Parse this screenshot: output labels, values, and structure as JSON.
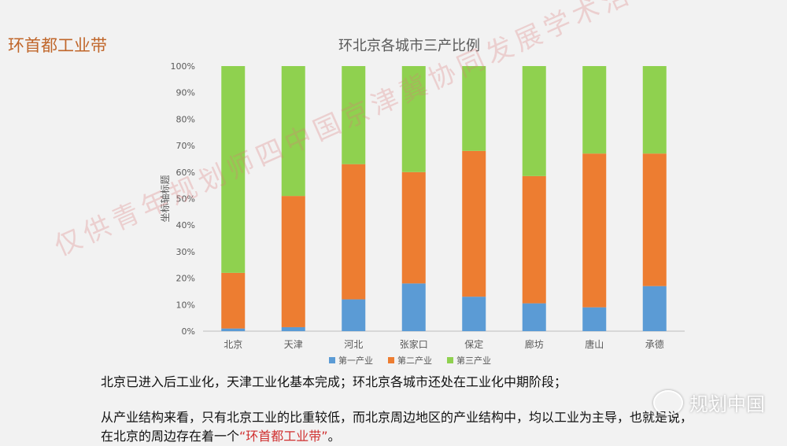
{
  "slide": {
    "title": "环首都工业带",
    "watermark": "仅供青年规划师四中国京津冀协同发展学术活动使用",
    "paragraph1": "北京已进入后工业化，天津工业化基本完成；环北京各城市还处在工业化中期阶段；",
    "paragraph2_before": "从产业结构来看，只有北京工业的比重较低，而北京周边地区的产业结构中，均以工业为主导，也就是说，在北京的周边存在着一个",
    "paragraph2_highlight": "“环首都工业带”",
    "paragraph2_after": "。",
    "brand_name": "规划中国",
    "brand_icon": "wechat-icon"
  },
  "chart_data": {
    "type": "bar",
    "stacked": true,
    "title": "环北京各城市三产比例",
    "ylabel": "坐标轴标题",
    "xlabel": "",
    "ylim": [
      0,
      100
    ],
    "y_ticks": [
      "0%",
      "10%",
      "20%",
      "30%",
      "40%",
      "50%",
      "60%",
      "70%",
      "80%",
      "90%",
      "100%"
    ],
    "categories": [
      "北京",
      "天津",
      "河北",
      "张家口",
      "保定",
      "廊坊",
      "唐山",
      "承德"
    ],
    "series": [
      {
        "name": "第一产业",
        "color": "#5b9bd5",
        "values": [
          1,
          1.5,
          12,
          18,
          13,
          10.5,
          9,
          17
        ]
      },
      {
        "name": "第二产业",
        "color": "#ed7d31",
        "values": [
          21,
          49.5,
          51,
          42,
          55,
          48,
          58,
          50
        ]
      },
      {
        "name": "第三产业",
        "color": "#8fd14f",
        "values": [
          78,
          49,
          37,
          40,
          32,
          41.5,
          33,
          33
        ]
      }
    ],
    "legend_position": "bottom",
    "grid": false
  }
}
